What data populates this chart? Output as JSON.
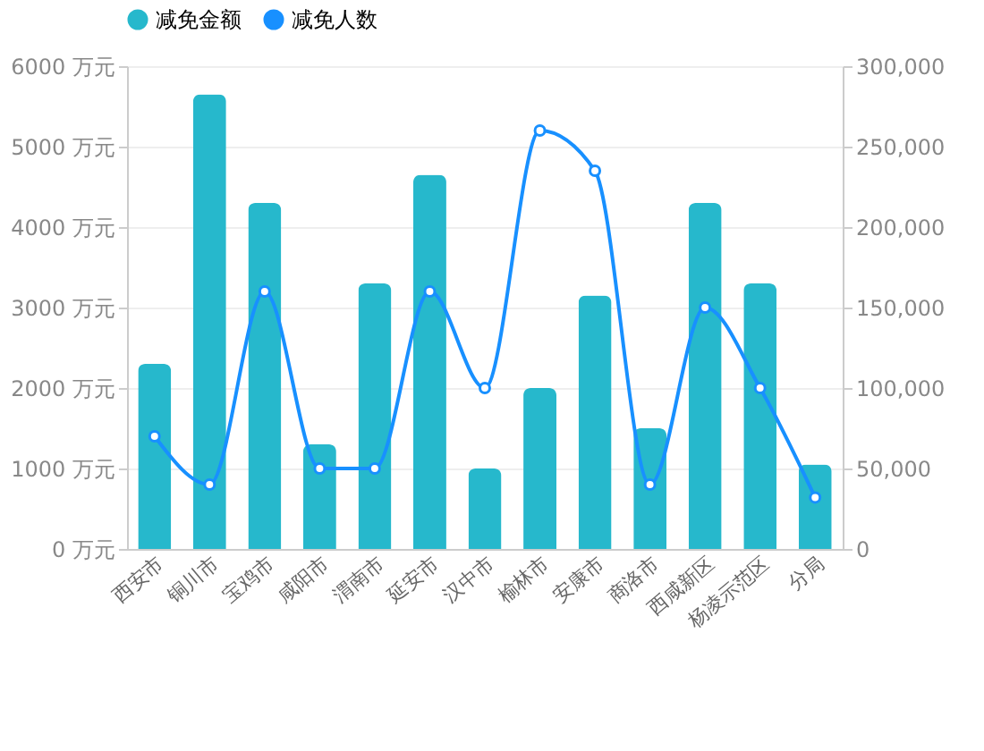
{
  "chart_data": {
    "type": "bar",
    "categories": [
      "西安市",
      "铜川市",
      "宝鸡市",
      "咸阳市",
      "渭南市",
      "延安市",
      "汉中市",
      "榆林市",
      "安康市",
      "商洛市",
      "西咸新区",
      "杨凌示范区",
      "分局"
    ],
    "series": [
      {
        "name": "减免金额",
        "color": "#26b8cc",
        "values": [
          2300,
          5650,
          4300,
          1300,
          3300,
          4650,
          1000,
          2000,
          3150,
          1500,
          4300,
          3300,
          1050
        ]
      },
      {
        "name": "减免人数",
        "type": "line",
        "axis": "y2",
        "color": "#1890ff",
        "marker": "circle",
        "values": [
          70000,
          40000,
          160000,
          50000,
          50000,
          160000,
          100000,
          260000,
          235000,
          40000,
          150000,
          100000,
          32000
        ]
      }
    ],
    "ylim": [
      0,
      6000
    ],
    "yticks": [
      {
        "value": 0,
        "label": "0 万元"
      },
      {
        "value": 1000,
        "label": "1000 万元"
      },
      {
        "value": 2000,
        "label": "2000 万元"
      },
      {
        "value": 3000,
        "label": "3000 万元"
      },
      {
        "value": 4000,
        "label": "4000 万元"
      },
      {
        "value": 5000,
        "label": "5000 万元"
      },
      {
        "value": 6000,
        "label": "6000 万元"
      }
    ],
    "y2lim": [
      0,
      300000
    ],
    "y2ticks": [
      0,
      {
        "value": 50000,
        "label": "50,000"
      },
      {
        "value": 100000,
        "label": "100,000"
      },
      {
        "value": 150000,
        "label": "150,000"
      },
      {
        "value": 200000,
        "label": "200,000"
      },
      {
        "value": 250000,
        "label": "250,000"
      },
      {
        "value": 300000,
        "label": "300,000"
      }
    ],
    "grid": "y",
    "legend": "top"
  }
}
